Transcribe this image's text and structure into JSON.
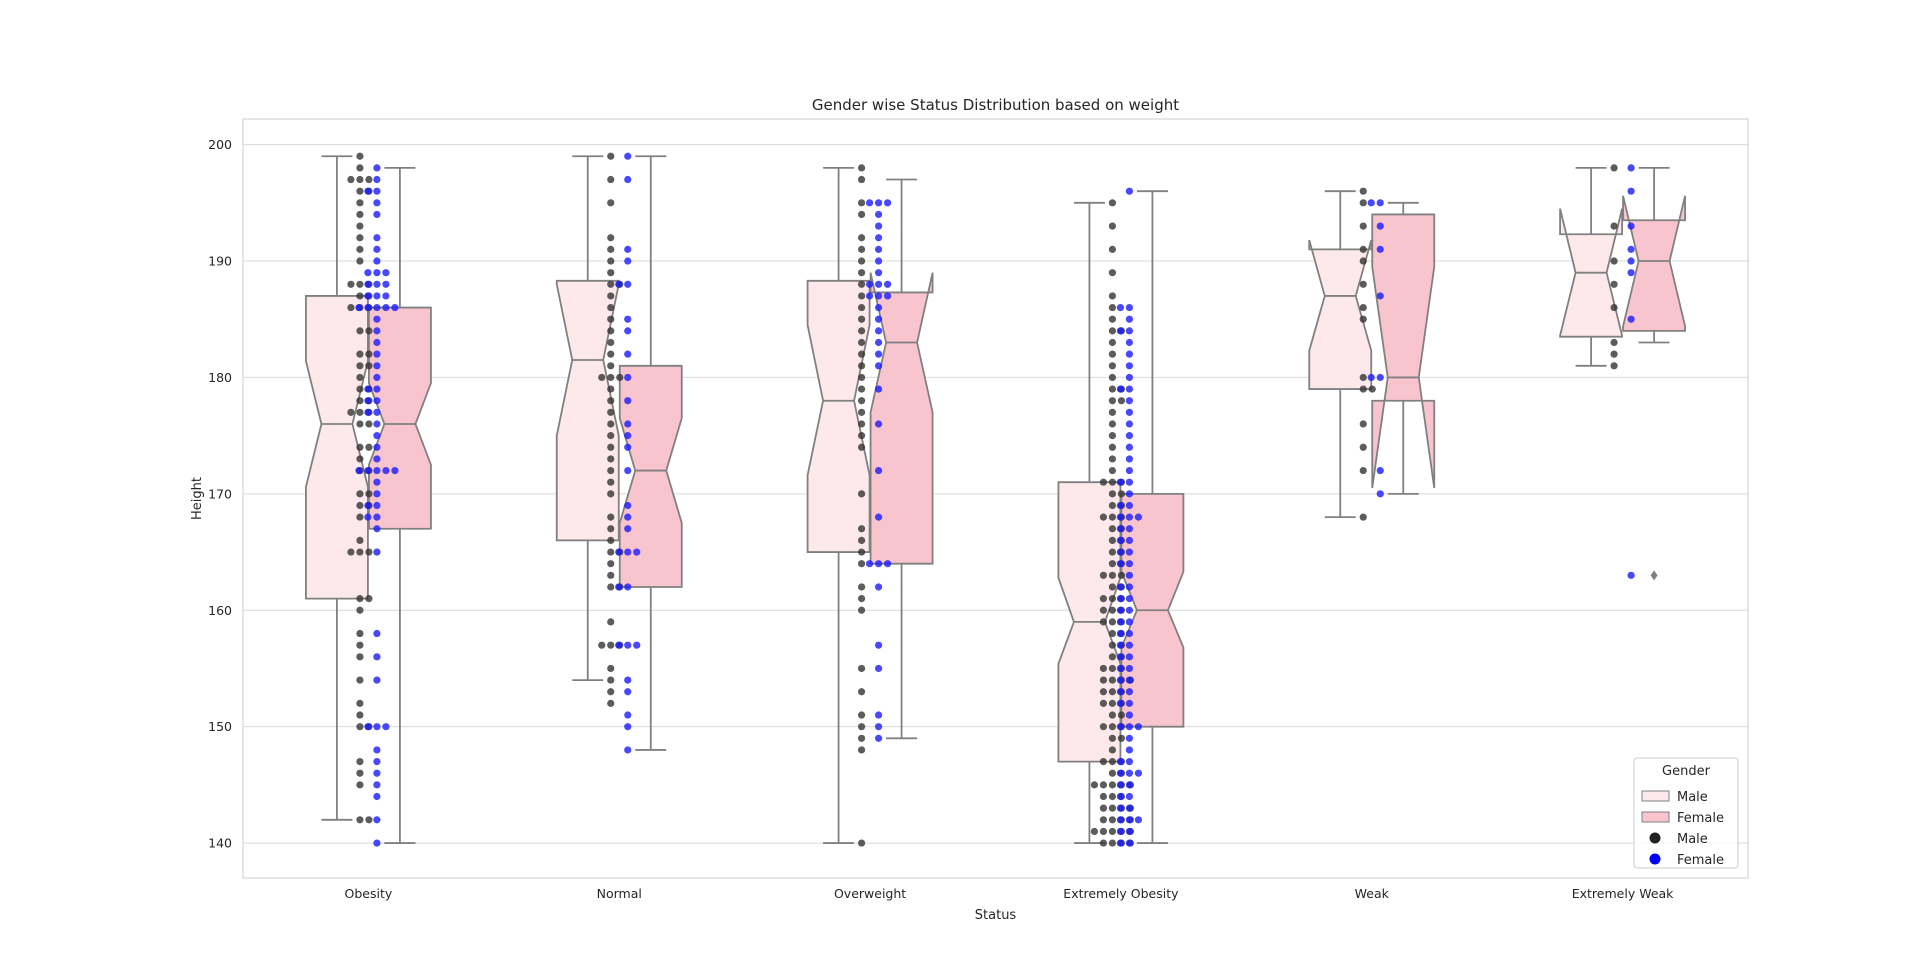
{
  "chart_data": {
    "type": "box",
    "title": "Gender wise Status Distribution based on weight",
    "xlabel": "Status",
    "ylabel": "Height",
    "ylim": [
      137,
      202.2
    ],
    "yticks": [
      140,
      150,
      160,
      170,
      180,
      190,
      200
    ],
    "categories": [
      "Obesity",
      "Normal",
      "Overweight",
      "Extremely Obesity",
      "Weak",
      "Extremely Weak"
    ],
    "grid": "horizontal",
    "legend": {
      "title": "Gender",
      "placement": "lower right",
      "entries": [
        {
          "label": "Male",
          "kind": "box",
          "color": "#fde8eb"
        },
        {
          "label": "Female",
          "kind": "box",
          "color": "#f8c5cf"
        },
        {
          "label": "Male",
          "kind": "point",
          "color": "#222222"
        },
        {
          "label": "Female",
          "kind": "point",
          "color": "#0000ff"
        }
      ]
    },
    "colors": {
      "box_male": "#fde8eb",
      "box_female": "#f8c5cf",
      "box_edge": "#808080",
      "point_male": "#333333",
      "point_female": "#1a1aff"
    },
    "boxes": [
      {
        "category": "Obesity",
        "gender": "Male",
        "whisker_low": 142,
        "q1": 161,
        "median": 176,
        "q3": 187,
        "whisker_high": 199,
        "notch": [
          170.6,
          181.4
        ]
      },
      {
        "category": "Obesity",
        "gender": "Female",
        "whisker_low": 140,
        "q1": 167,
        "median": 176,
        "q3": 186,
        "whisker_high": 198,
        "notch": [
          172.5,
          179.5
        ]
      },
      {
        "category": "Normal",
        "gender": "Male",
        "whisker_low": 154,
        "q1": 166,
        "median": 181.5,
        "q3": 188.3,
        "whisker_high": 199,
        "notch": [
          175,
          188
        ]
      },
      {
        "category": "Normal",
        "gender": "Female",
        "whisker_low": 148,
        "q1": 162,
        "median": 172,
        "q3": 181,
        "whisker_high": 199,
        "notch": [
          167.5,
          176.5
        ]
      },
      {
        "category": "Overweight",
        "gender": "Male",
        "whisker_low": 140,
        "q1": 165,
        "median": 178,
        "q3": 188.3,
        "whisker_high": 198,
        "notch": [
          171.6,
          184.5
        ]
      },
      {
        "category": "Overweight",
        "gender": "Female",
        "whisker_low": 149,
        "q1": 164,
        "median": 183,
        "q3": 187.3,
        "whisker_high": 197,
        "notch": [
          177,
          189
        ]
      },
      {
        "category": "Extremely Obesity",
        "gender": "Male",
        "whisker_low": 140,
        "q1": 147,
        "median": 159,
        "q3": 171,
        "whisker_high": 195,
        "notch": [
          155.4,
          162.8
        ]
      },
      {
        "category": "Extremely Obesity",
        "gender": "Female",
        "whisker_low": 140,
        "q1": 150,
        "median": 160,
        "q3": 170,
        "whisker_high": 196,
        "notch": [
          156.8,
          163.3
        ]
      },
      {
        "category": "Weak",
        "gender": "Male",
        "whisker_low": 168,
        "q1": 179,
        "median": 187,
        "q3": 191,
        "whisker_high": 196,
        "notch": [
          182.3,
          191.8
        ]
      },
      {
        "category": "Weak",
        "gender": "Female",
        "whisker_low": 170,
        "q1": 178,
        "median": 180,
        "q3": 194,
        "whisker_high": 195,
        "notch": [
          170.5,
          189.5
        ]
      },
      {
        "category": "Extremely Weak",
        "gender": "Male",
        "whisker_low": 181,
        "q1": 183.5,
        "median": 189,
        "q3": 192.3,
        "whisker_high": 198,
        "notch": [
          183.6,
          194.5
        ]
      },
      {
        "category": "Extremely Weak",
        "gender": "Female",
        "whisker_low": 183,
        "q1": 184,
        "median": 190,
        "q3": 193.5,
        "whisker_high": 198,
        "notch": [
          184.4,
          195.6
        ],
        "outliers": [
          163
        ]
      }
    ],
    "points": [
      {
        "category": "Obesity",
        "gender": "Male",
        "values": [
          142,
          142,
          145,
          146,
          147,
          150,
          150,
          151,
          152,
          154,
          156,
          157,
          158,
          160,
          161,
          161,
          165,
          165,
          165,
          166,
          168,
          169,
          169,
          170,
          170,
          172,
          172,
          173,
          174,
          174,
          176,
          176,
          177,
          177,
          177,
          178,
          178,
          179,
          179,
          180,
          181,
          181,
          182,
          182,
          184,
          184,
          186,
          186,
          186,
          187,
          187,
          188,
          188,
          188,
          190,
          191,
          192,
          193,
          194,
          195,
          196,
          196,
          197,
          197,
          197,
          198,
          199
        ]
      },
      {
        "category": "Obesity",
        "gender": "Female",
        "values": [
          140,
          142,
          144,
          145,
          146,
          147,
          148,
          150,
          150,
          150,
          154,
          156,
          158,
          165,
          167,
          168,
          168,
          169,
          169,
          170,
          171,
          172,
          172,
          172,
          172,
          172,
          173,
          174,
          175,
          176,
          177,
          177,
          178,
          178,
          179,
          179,
          180,
          181,
          182,
          183,
          184,
          185,
          186,
          186,
          186,
          186,
          186,
          187,
          187,
          187,
          188,
          188,
          188,
          189,
          189,
          189,
          190,
          191,
          192,
          194,
          195,
          196,
          196,
          197,
          198
        ]
      },
      {
        "category": "Normal",
        "gender": "Male",
        "values": [
          152,
          153,
          154,
          155,
          157,
          157,
          157,
          159,
          162,
          162,
          163,
          164,
          165,
          165,
          166,
          167,
          168,
          170,
          171,
          172,
          173,
          174,
          175,
          176,
          177,
          178,
          179,
          180,
          180,
          180,
          181,
          182,
          183,
          184,
          185,
          186,
          187,
          188,
          188,
          189,
          190,
          191,
          192,
          195,
          197,
          199
        ]
      },
      {
        "category": "Normal",
        "gender": "Female",
        "values": [
          148,
          150,
          151,
          153,
          154,
          157,
          157,
          157,
          162,
          162,
          165,
          165,
          165,
          167,
          168,
          169,
          172,
          174,
          175,
          176,
          178,
          180,
          182,
          184,
          185,
          188,
          188,
          190,
          191,
          197,
          199
        ]
      },
      {
        "category": "Overweight",
        "gender": "Male",
        "values": [
          140,
          148,
          149,
          150,
          151,
          153,
          155,
          160,
          161,
          162,
          164,
          165,
          166,
          167,
          170,
          174,
          175,
          176,
          177,
          178,
          179,
          180,
          181,
          182,
          183,
          184,
          185,
          186,
          187,
          188,
          189,
          190,
          191,
          192,
          194,
          195,
          197,
          198
        ]
      },
      {
        "category": "Overweight",
        "gender": "Female",
        "values": [
          149,
          150,
          151,
          155,
          157,
          162,
          164,
          164,
          164,
          168,
          172,
          176,
          179,
          181,
          182,
          183,
          184,
          185,
          186,
          187,
          187,
          187,
          188,
          188,
          188,
          189,
          190,
          191,
          192,
          193,
          194,
          195,
          195,
          195
        ]
      },
      {
        "category": "Extremely Obesity",
        "gender": "Male",
        "values": [
          140,
          140,
          140,
          140,
          141,
          141,
          141,
          141,
          141,
          142,
          142,
          142,
          142,
          143,
          143,
          143,
          143,
          144,
          144,
          144,
          145,
          145,
          145,
          145,
          145,
          146,
          146,
          147,
          147,
          147,
          148,
          149,
          149,
          150,
          150,
          150,
          151,
          151,
          152,
          152,
          152,
          153,
          153,
          153,
          154,
          154,
          154,
          154,
          155,
          155,
          155,
          156,
          156,
          157,
          157,
          158,
          158,
          159,
          159,
          159,
          160,
          160,
          160,
          161,
          161,
          161,
          162,
          162,
          163,
          163,
          163,
          164,
          164,
          165,
          165,
          166,
          166,
          167,
          167,
          168,
          168,
          168,
          169,
          169,
          170,
          170,
          171,
          171,
          171,
          172,
          173,
          174,
          175,
          176,
          177,
          178,
          178,
          179,
          179,
          180,
          181,
          182,
          183,
          184,
          184,
          185,
          186,
          187,
          189,
          191,
          193,
          195
        ]
      },
      {
        "category": "Extremely Obesity",
        "gender": "Female",
        "values": [
          140,
          140,
          141,
          141,
          142,
          142,
          142,
          143,
          143,
          144,
          144,
          145,
          145,
          146,
          146,
          146,
          147,
          147,
          148,
          149,
          150,
          150,
          150,
          151,
          152,
          152,
          153,
          153,
          154,
          154,
          155,
          155,
          156,
          156,
          157,
          157,
          158,
          158,
          159,
          159,
          160,
          160,
          161,
          161,
          162,
          162,
          163,
          164,
          164,
          165,
          165,
          166,
          166,
          167,
          167,
          168,
          168,
          168,
          169,
          169,
          170,
          171,
          171,
          172,
          173,
          174,
          175,
          176,
          177,
          178,
          179,
          179,
          180,
          181,
          182,
          183,
          184,
          184,
          185,
          186,
          186,
          196
        ]
      },
      {
        "category": "Weak",
        "gender": "Male",
        "values": [
          168,
          172,
          174,
          176,
          179,
          179,
          180,
          185,
          186,
          188,
          190,
          191,
          193,
          195,
          196
        ]
      },
      {
        "category": "Weak",
        "gender": "Female",
        "values": [
          170,
          172,
          180,
          180,
          187,
          191,
          193,
          195,
          195
        ]
      },
      {
        "category": "Extremely Weak",
        "gender": "Male",
        "values": [
          181,
          182,
          183,
          186,
          188,
          190,
          193,
          198
        ]
      },
      {
        "category": "Extremely Weak",
        "gender": "Female",
        "values": [
          163,
          185,
          189,
          190,
          191,
          193,
          196,
          198
        ]
      }
    ]
  }
}
